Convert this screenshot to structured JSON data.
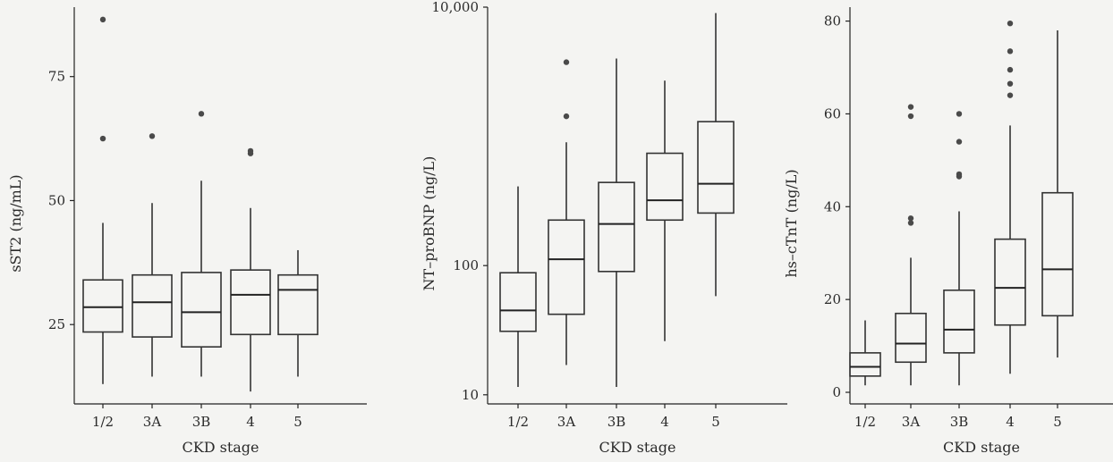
{
  "chart_data": [
    {
      "type": "box",
      "ylabel": "sST2 (ng/mL)",
      "xlabel": "CKD stage",
      "categories": [
        "1/2",
        "3A",
        "3B",
        "4",
        "5"
      ],
      "y_ticks": [
        25,
        50,
        75
      ],
      "y_tick_labels": [
        "25",
        "50",
        "75"
      ],
      "ylim": [
        9,
        89
      ],
      "scale": "linear",
      "boxes": [
        {
          "min": 13,
          "q1": 23.5,
          "median": 28.5,
          "q3": 34,
          "max": 45.5,
          "outliers": [
            62.5,
            86.5
          ]
        },
        {
          "min": 14.5,
          "q1": 22.5,
          "median": 29.5,
          "q3": 35,
          "max": 49.5,
          "outliers": [
            63
          ]
        },
        {
          "min": 14.5,
          "q1": 20.5,
          "median": 27.5,
          "q3": 35.5,
          "max": 54,
          "outliers": [
            67.5
          ]
        },
        {
          "min": 11.5,
          "q1": 23,
          "median": 31,
          "q3": 36,
          "max": 48.5,
          "outliers": [
            59.5,
            60
          ]
        },
        {
          "min": 14.5,
          "q1": 23,
          "median": 32,
          "q3": 35,
          "max": 40,
          "outliers": []
        }
      ]
    },
    {
      "type": "box",
      "ylabel": "NT–proBNP (ng/L)",
      "xlabel": "CKD stage",
      "categories": [
        "1/2",
        "3A",
        "3B",
        "4",
        "5"
      ],
      "y_ticks": [
        10,
        100,
        10000
      ],
      "y_tick_labels": [
        "10",
        "100",
        "10,000"
      ],
      "ylim": [
        8.5,
        10000
      ],
      "scale": "log",
      "boxes": [
        {
          "min": 11.5,
          "q1": 31,
          "median": 45,
          "q3": 88,
          "max": 410,
          "outliers": []
        },
        {
          "min": 17,
          "q1": 42,
          "median": 112,
          "q3": 225,
          "max": 900,
          "outliers": [
            1430,
            3750
          ]
        },
        {
          "min": 11.5,
          "q1": 90,
          "median": 210,
          "q3": 440,
          "max": 4000,
          "outliers": []
        },
        {
          "min": 26,
          "q1": 225,
          "median": 320,
          "q3": 740,
          "max": 2700,
          "outliers": []
        },
        {
          "min": 58,
          "q1": 255,
          "median": 430,
          "q3": 1300,
          "max": 9000,
          "outliers": []
        }
      ]
    },
    {
      "type": "box",
      "ylabel": "hs–cTnT (ng/L)",
      "xlabel": "CKD stage",
      "categories": [
        "1/2",
        "3A",
        "3B",
        "4",
        "5"
      ],
      "y_ticks": [
        0,
        20,
        40,
        60,
        80
      ],
      "y_tick_labels": [
        "0",
        "20",
        "40",
        "60",
        "80"
      ],
      "ylim": [
        -2.5,
        83
      ],
      "scale": "linear",
      "boxes": [
        {
          "min": 1.5,
          "q1": 3.5,
          "median": 5.5,
          "q3": 8.5,
          "max": 15.5,
          "outliers": []
        },
        {
          "min": 1.5,
          "q1": 6.5,
          "median": 10.5,
          "q3": 17,
          "max": 29,
          "outliers": [
            36.5,
            37.5,
            59.5,
            61.5
          ]
        },
        {
          "min": 1.5,
          "q1": 8.5,
          "median": 13.5,
          "q3": 22,
          "max": 39,
          "outliers": [
            46.5,
            47,
            54,
            60
          ]
        },
        {
          "min": 4,
          "q1": 14.5,
          "median": 22.5,
          "q3": 33,
          "max": 57.5,
          "outliers": [
            64,
            66.5,
            69.5,
            73.5,
            79.5
          ]
        },
        {
          "min": 7.5,
          "q1": 16.5,
          "median": 26.5,
          "q3": 43,
          "max": 78,
          "outliers": []
        }
      ]
    }
  ]
}
